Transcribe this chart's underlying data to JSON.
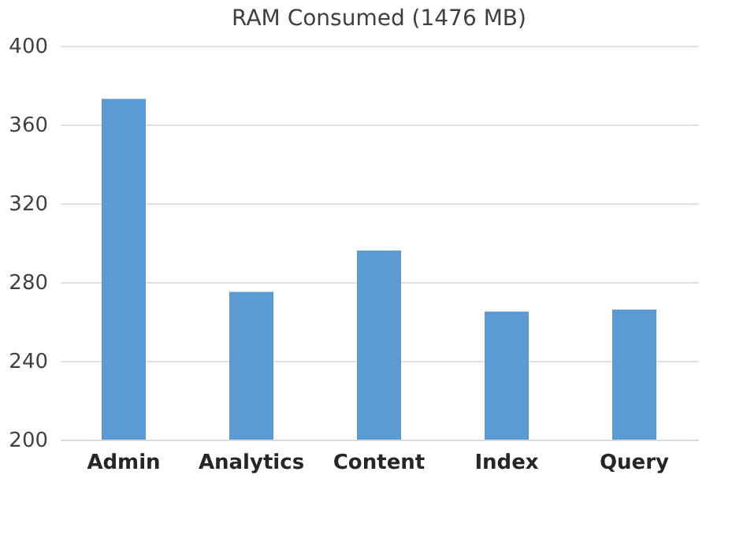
{
  "chart_data": {
    "type": "bar",
    "title": "RAM Consumed (1476 MB)",
    "categories": [
      "Admin",
      "Analytics",
      "Content",
      "Index",
      "Query"
    ],
    "values": [
      373,
      275,
      296,
      265,
      266
    ],
    "color": "#5b9bd5",
    "ylim": [
      200,
      400
    ],
    "yticks": [
      200,
      240,
      280,
      320,
      360,
      400
    ],
    "grid": "y"
  }
}
